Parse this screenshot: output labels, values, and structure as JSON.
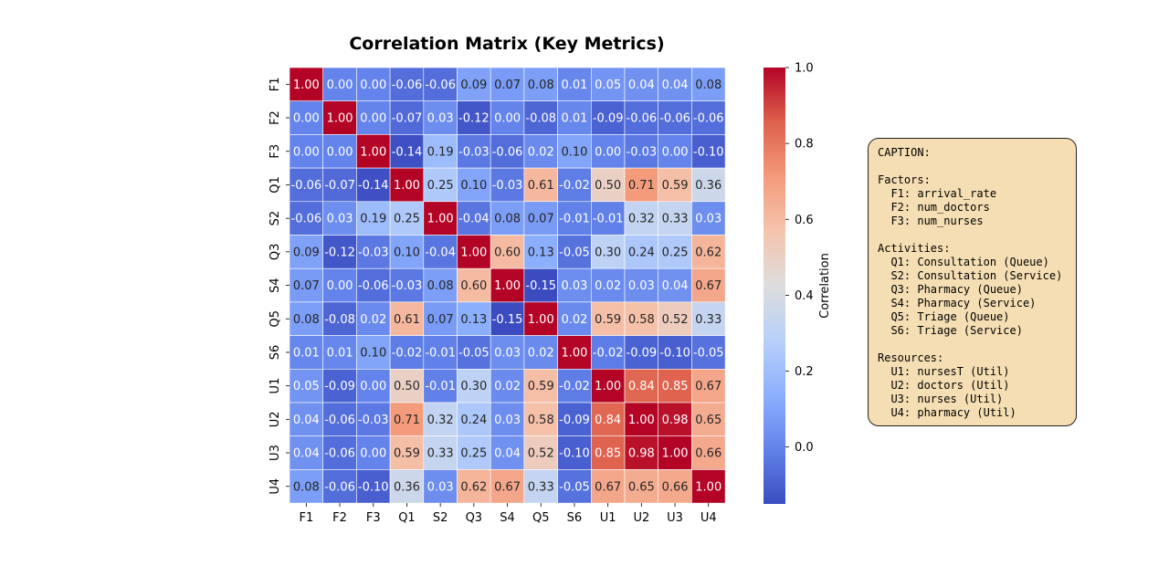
{
  "chart_data": {
    "type": "heatmap",
    "title": "Correlation Matrix (Key Metrics)",
    "labels": [
      "F1",
      "F2",
      "F3",
      "Q1",
      "S2",
      "Q3",
      "S4",
      "Q5",
      "S6",
      "U1",
      "U2",
      "U3",
      "U4"
    ],
    "matrix": [
      [
        1.0,
        0.0,
        0.0,
        -0.06,
        -0.06,
        0.09,
        0.07,
        0.08,
        0.01,
        0.05,
        0.04,
        0.04,
        0.08
      ],
      [
        0.0,
        1.0,
        0.0,
        -0.07,
        0.03,
        -0.12,
        0.0,
        -0.08,
        0.01,
        -0.09,
        -0.06,
        -0.06,
        -0.06
      ],
      [
        0.0,
        0.0,
        1.0,
        -0.14,
        0.19,
        -0.03,
        -0.06,
        0.02,
        0.1,
        0.0,
        -0.03,
        0.0,
        -0.1
      ],
      [
        -0.06,
        -0.07,
        -0.14,
        1.0,
        0.25,
        0.1,
        -0.03,
        0.61,
        -0.02,
        0.5,
        0.71,
        0.59,
        0.36
      ],
      [
        -0.06,
        0.03,
        0.19,
        0.25,
        1.0,
        -0.04,
        0.08,
        0.07,
        -0.01,
        -0.01,
        0.32,
        0.33,
        0.03
      ],
      [
        0.09,
        -0.12,
        -0.03,
        0.1,
        -0.04,
        1.0,
        0.6,
        0.13,
        -0.05,
        0.3,
        0.24,
        0.25,
        0.62
      ],
      [
        0.07,
        0.0,
        -0.06,
        -0.03,
        0.08,
        0.6,
        1.0,
        -0.15,
        0.03,
        0.02,
        0.03,
        0.04,
        0.67
      ],
      [
        0.08,
        -0.08,
        0.02,
        0.61,
        0.07,
        0.13,
        -0.15,
        1.0,
        0.02,
        0.59,
        0.58,
        0.52,
        0.33
      ],
      [
        0.01,
        0.01,
        0.1,
        -0.02,
        -0.01,
        -0.05,
        0.03,
        0.02,
        1.0,
        -0.02,
        -0.09,
        -0.1,
        -0.05
      ],
      [
        0.05,
        -0.09,
        0.0,
        0.5,
        -0.01,
        0.3,
        0.02,
        0.59,
        -0.02,
        1.0,
        0.84,
        0.85,
        0.67
      ],
      [
        0.04,
        -0.06,
        -0.03,
        0.71,
        0.32,
        0.24,
        0.03,
        0.58,
        -0.09,
        0.84,
        1.0,
        0.98,
        0.65
      ],
      [
        0.04,
        -0.06,
        0.0,
        0.59,
        0.33,
        0.25,
        0.04,
        0.52,
        -0.1,
        0.85,
        0.98,
        1.0,
        0.66
      ],
      [
        0.08,
        -0.06,
        -0.1,
        0.36,
        0.03,
        0.62,
        0.67,
        0.33,
        -0.05,
        0.67,
        0.65,
        0.66,
        1.0
      ]
    ],
    "colorbar": {
      "label": "Correlation",
      "range": [
        -0.15,
        1.0
      ],
      "ticks": [
        "0.0",
        "0.2",
        "0.4",
        "0.6",
        "0.8",
        "1.0"
      ],
      "colormap": "coolwarm"
    }
  },
  "caption": {
    "lines": [
      "CAPTION:",
      "",
      "Factors:",
      "  F1: arrival_rate",
      "  F2: num_doctors",
      "  F3: num_nurses",
      "",
      "Activities:",
      "  Q1: Consultation (Queue)",
      "  S2: Consultation (Service)",
      "  Q3: Pharmacy (Queue)",
      "  S4: Pharmacy (Service)",
      "  Q5: Triage (Queue)",
      "  S6: Triage (Service)",
      "",
      "Resources:",
      "  U1: nursesT (Util)",
      "  U2: doctors (Util)",
      "  U3: nurses (Util)",
      "  U4: pharmacy (Util)"
    ]
  }
}
